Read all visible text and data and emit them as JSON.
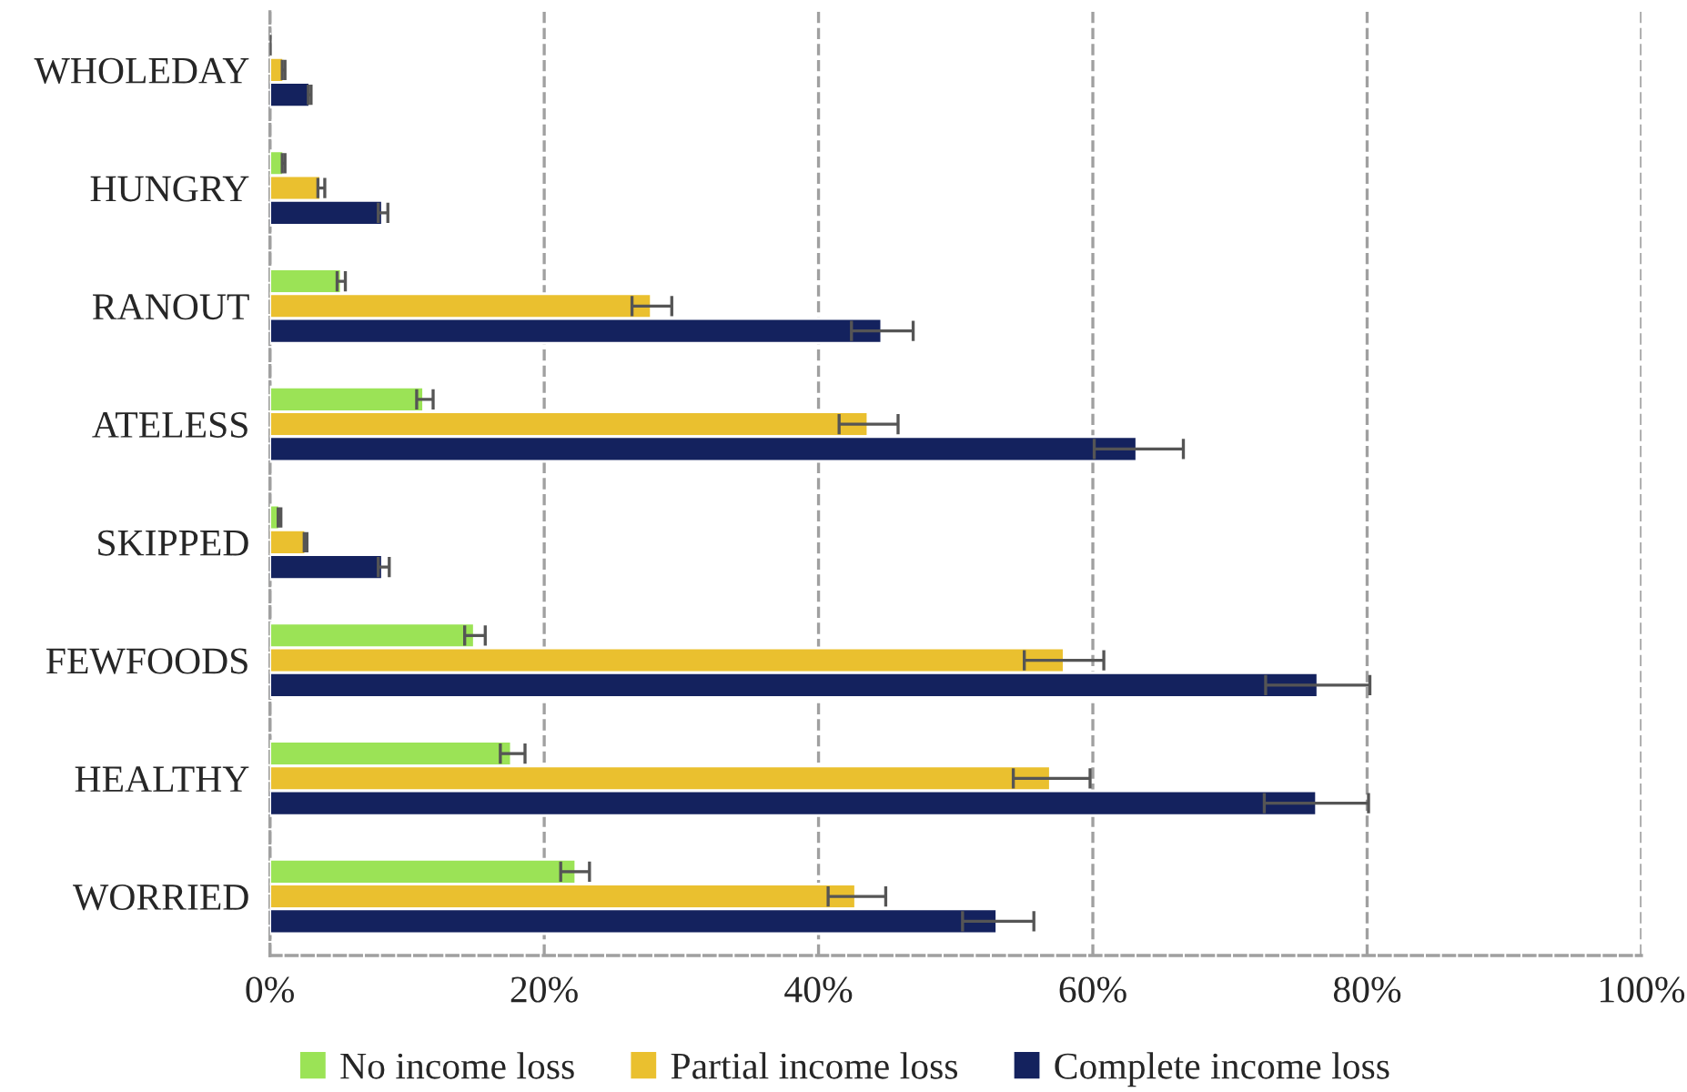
{
  "chart_data": {
    "type": "bar",
    "orientation": "horizontal",
    "categories": [
      "WHOLEDAY",
      "HUNGRY",
      "RANOUT",
      "ATELESS",
      "SKIPPED",
      "FEWFOODS",
      "HEALTHY",
      "WORRIED"
    ],
    "series": [
      {
        "name": "No income loss",
        "color": "#9be356",
        "values": [
          null,
          1.0,
          5.2,
          11.2,
          0.7,
          14.9,
          17.6,
          22.3
        ],
        "errors": [
          null,
          [
            0.9,
            1.1
          ],
          [
            4.9,
            5.5
          ],
          [
            10.7,
            11.9
          ],
          [
            0.6,
            0.8
          ],
          [
            14.2,
            15.7
          ],
          [
            16.8,
            18.6
          ],
          [
            21.2,
            23.3
          ]
        ]
      },
      {
        "name": "Partial income loss",
        "color": "#eac02f",
        "values": [
          1.0,
          3.7,
          27.8,
          43.6,
          2.6,
          57.9,
          56.9,
          42.7
        ],
        "errors": [
          [
            0.9,
            1.1
          ],
          [
            3.5,
            4.0
          ],
          [
            26.4,
            29.3
          ],
          [
            41.5,
            45.8
          ],
          [
            2.5,
            2.7
          ],
          [
            55.0,
            60.8
          ],
          [
            54.2,
            59.8
          ],
          [
            40.7,
            44.9
          ]
        ]
      },
      {
        "name": "Complete income loss",
        "color": "#14225e",
        "values": [
          2.9,
          8.2,
          44.6,
          63.2,
          8.2,
          76.4,
          76.3,
          53.0
        ],
        "errors": [
          [
            2.8,
            3.0
          ],
          [
            7.9,
            8.6
          ],
          [
            42.4,
            46.9
          ],
          [
            60.1,
            66.6
          ],
          [
            7.9,
            8.7
          ],
          [
            72.6,
            80.2
          ],
          [
            72.5,
            80.1
          ],
          [
            50.5,
            55.7
          ]
        ]
      }
    ],
    "xlim": [
      0,
      100
    ],
    "xticks": [
      {
        "value": 0,
        "label": "0%"
      },
      {
        "value": 20,
        "label": "20%"
      },
      {
        "value": 40,
        "label": "40%"
      },
      {
        "value": 60,
        "label": "60%"
      },
      {
        "value": 80,
        "label": "80%"
      },
      {
        "value": 100,
        "label": "100%"
      }
    ],
    "grid": "x",
    "legend": "bottom"
  }
}
